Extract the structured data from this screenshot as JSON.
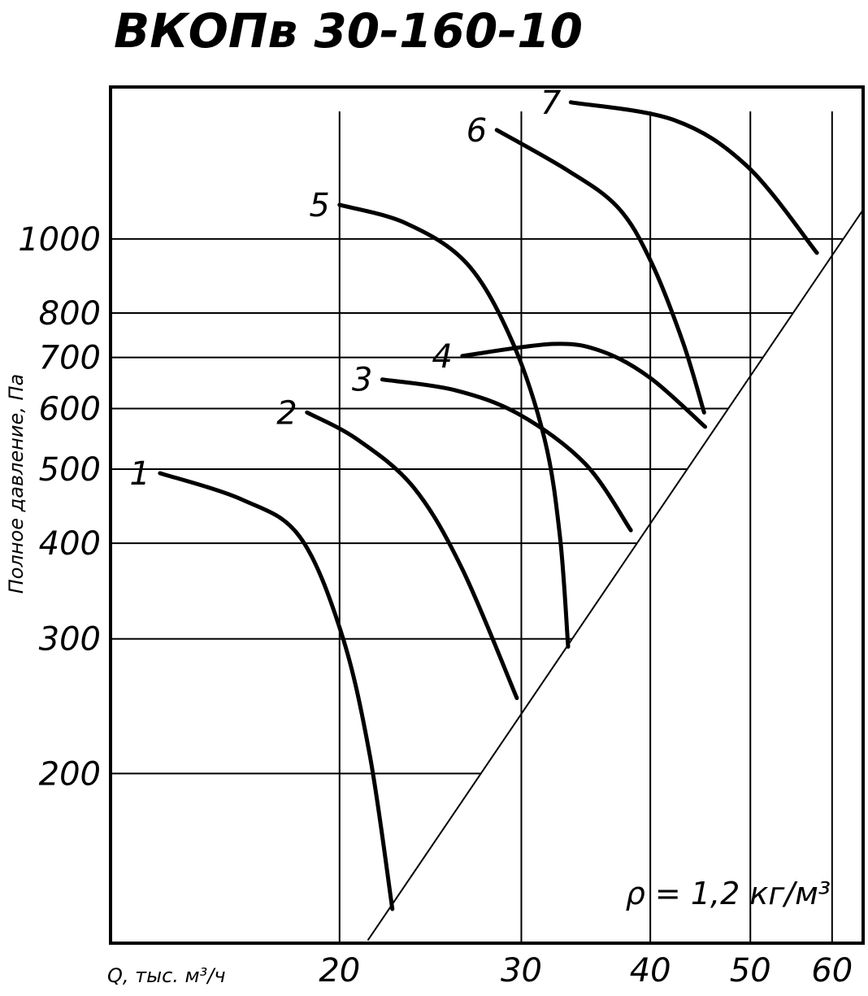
{
  "chart_data": {
    "type": "line",
    "title": "ВКОПв 30-160-10",
    "y_label": "Полное давление, Па",
    "x_label": "Q, тыс. м³/ч",
    "annotation": "ρ = 1,2 кг/м³",
    "log_x": true,
    "log_y": true,
    "grid": true,
    "color": "#000000",
    "xlim": [
      12,
      64.3
    ],
    "ylim": [
      120,
      1580
    ],
    "xticks": [
      20,
      30,
      40,
      50,
      60
    ],
    "yticks": [
      200,
      300,
      400,
      500,
      600,
      700,
      800,
      1000
    ],
    "series": [
      {
        "name": "1",
        "x": [
          13.4,
          16.1,
          18.3,
          20.1,
          21.4,
          22.5
        ],
        "values": [
          494,
          456,
          408,
          304,
          211,
          133
        ]
      },
      {
        "name": "2",
        "x": [
          18.6,
          20.8,
          23.6,
          26.3,
          29.7
        ],
        "values": [
          593,
          547,
          473,
          370,
          251
        ]
      },
      {
        "name": "3",
        "x": [
          22.0,
          25.9,
          29.9,
          34.6,
          38.3
        ],
        "values": [
          655,
          634,
          589,
          508,
          416
        ]
      },
      {
        "name": "4",
        "x": [
          26.3,
          32.2,
          35.9,
          40.0,
          45.2
        ],
        "values": [
          703,
          729,
          713,
          658,
          568
        ]
      },
      {
        "name": "5",
        "x": [
          20.0,
          23.2,
          26.6,
          29.4,
          31.6,
          32.7,
          33.3
        ],
        "values": [
          1108,
          1048,
          927,
          734,
          547,
          408,
          293
        ]
      },
      {
        "name": "6",
        "x": [
          28.4,
          33.3,
          37.2,
          40.0,
          43.0,
          45.1
        ],
        "values": [
          1388,
          1228,
          1100,
          938,
          734,
          593
        ]
      },
      {
        "name": "7",
        "x": [
          33.5,
          42.2,
          49.7,
          58.0
        ],
        "values": [
          1509,
          1430,
          1243,
          959
        ]
      }
    ],
    "boundary": {
      "x": [
        21.3,
        64.3
      ],
      "values": [
        121,
        1092
      ]
    }
  }
}
